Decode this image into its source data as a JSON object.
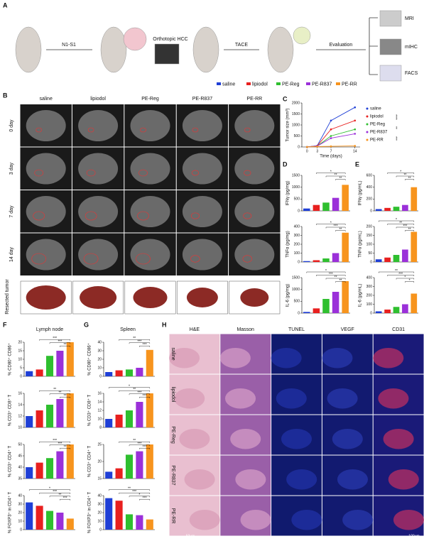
{
  "group_colors": [
    "#1f3fd6",
    "#e8201f",
    "#2fbf2f",
    "#9b30d9",
    "#f7941d"
  ],
  "letters": [
    "A",
    "B",
    "C",
    "D",
    "E",
    "F",
    "G",
    "H"
  ],
  "panel_a": {
    "steps": [
      "N1-S1",
      "Orthotopic HCC",
      "TACE",
      "Evaluation"
    ],
    "methods": [
      "MRI",
      "mIHC",
      "FACS"
    ],
    "legend": [
      "saline",
      "lipiodol",
      "PE-Reg",
      "PE-R837",
      "PE-RR"
    ]
  },
  "panel_b": {
    "columns": [
      "saline",
      "lipiodol",
      "PE-Reg",
      "PE-R837",
      "PE-RR"
    ],
    "rows": [
      "0 day",
      "3 day",
      "7 day",
      "14 day"
    ],
    "tumor_label": "Resected tumor"
  },
  "panel_c": {
    "type": "line",
    "ylabel": "Tumor size (mm³)",
    "xlabel": "Time (days)",
    "x": [
      0,
      3,
      7,
      14
    ],
    "xlim": [
      -1.5,
      15.5
    ],
    "xticks": [
      0,
      3,
      7,
      14
    ],
    "ylim": [
      0,
      2000
    ],
    "yticks": [
      0,
      500,
      1000,
      1500,
      2000
    ],
    "series": [
      {
        "name": "saline",
        "color": "#1f3fd6",
        "values": [
          0,
          60,
          1200,
          1800
        ]
      },
      {
        "name": "lipiodol",
        "color": "#e8201f",
        "values": [
          0,
          50,
          800,
          1200
        ]
      },
      {
        "name": "PE-Reg",
        "color": "#2fbf2f",
        "values": [
          0,
          40,
          500,
          800
        ]
      },
      {
        "name": "PE-R837",
        "color": "#9b30d9",
        "values": [
          0,
          40,
          400,
          600
        ]
      },
      {
        "name": "PE-RR",
        "color": "#f7941d",
        "values": [
          0,
          20,
          30,
          50
        ]
      }
    ],
    "sig": [
      "****",
      "**",
      "***"
    ]
  },
  "panel_d": [
    {
      "type": "bar",
      "ylabel": "IFNγ (pg/mg)",
      "ylim": [
        0,
        1500
      ],
      "yticks": [
        0,
        500,
        1000,
        1500
      ],
      "values": [
        100,
        250,
        350,
        550,
        1100
      ],
      "sig": [
        "**",
        "**",
        "*"
      ]
    },
    {
      "type": "bar",
      "ylabel": "TNFα (pg/mg)",
      "ylim": [
        0,
        400
      ],
      "yticks": [
        0,
        100,
        200,
        300,
        400
      ],
      "values": [
        10,
        20,
        40,
        100,
        330
      ],
      "sig": [
        "**",
        "***",
        "*"
      ]
    },
    {
      "type": "bar",
      "ylabel": "IL-6 (pg/mg)",
      "ylim": [
        0,
        1500
      ],
      "yticks": [
        0,
        500,
        1000,
        1500
      ],
      "values": [
        50,
        200,
        600,
        900,
        1350
      ],
      "sig": [
        "**",
        "**",
        "***",
        "*"
      ]
    }
  ],
  "panel_e": [
    {
      "type": "bar",
      "ylabel": "IFNγ (pg/mL)",
      "ylim": [
        0,
        600
      ],
      "yticks": [
        0,
        200,
        400,
        600
      ],
      "values": [
        30,
        50,
        70,
        100,
        400
      ],
      "sig": [
        "**",
        "**",
        "*"
      ]
    },
    {
      "type": "bar",
      "ylabel": "TNFα (pg/mL)",
      "ylim": [
        0,
        200
      ],
      "yticks": [
        0,
        50,
        100,
        150,
        200
      ],
      "values": [
        15,
        25,
        40,
        70,
        170
      ],
      "sig": [
        "**",
        "***",
        "**",
        "*"
      ]
    },
    {
      "type": "bar",
      "ylabel": "IL-6 (pg/mL)",
      "ylim": [
        0,
        400
      ],
      "yticks": [
        0,
        100,
        200,
        300,
        400
      ],
      "values": [
        20,
        40,
        70,
        100,
        220
      ],
      "sig": [
        "*",
        "*",
        "***",
        "**"
      ]
    }
  ],
  "panel_f": {
    "title": "Lymph node",
    "charts": [
      {
        "type": "bar",
        "ylabel": "% CD80⁺ CD86⁺",
        "ylim": [
          0,
          20
        ],
        "yticks": [
          0,
          5,
          10,
          15,
          20
        ],
        "values": [
          3,
          4,
          12,
          15,
          20
        ],
        "sig": [
          "**",
          "***",
          "***"
        ]
      },
      {
        "type": "bar",
        "ylabel": "% CD3⁺ CD8⁺ T",
        "ylim": [
          10,
          16
        ],
        "yticks": [
          10,
          12,
          14,
          16
        ],
        "values": [
          12,
          13,
          14,
          15,
          16
        ],
        "sig": [
          "**",
          "**",
          "**"
        ]
      },
      {
        "type": "bar",
        "ylabel": "% CD3⁺ CD4⁺ T",
        "ylim": [
          35,
          50
        ],
        "yticks": [
          35,
          40,
          45,
          50
        ],
        "values": [
          40,
          42,
          44,
          47,
          50
        ],
        "sig": [
          "**",
          "***",
          "***"
        ]
      },
      {
        "type": "bar",
        "ylabel": "% FOXP3⁺ in CD4⁺ T",
        "ylim": [
          0,
          40
        ],
        "yticks": [
          0,
          10,
          20,
          30,
          40
        ],
        "values": [
          32,
          28,
          22,
          20,
          13
        ],
        "sig": [
          "***",
          "**",
          "***",
          "*"
        ]
      }
    ]
  },
  "panel_g": {
    "title": "Spleen",
    "charts": [
      {
        "type": "bar",
        "ylabel": "% CD80⁺ CD86⁺",
        "ylim": [
          0,
          40
        ],
        "yticks": [
          0,
          10,
          20,
          30,
          40
        ],
        "values": [
          5,
          7,
          8,
          10,
          31
        ],
        "sig": [
          "***",
          "***",
          "**"
        ]
      },
      {
        "type": "bar",
        "ylabel": "% CD3⁺ CD8⁺ T",
        "ylim": [
          8,
          16
        ],
        "yticks": [
          8,
          10,
          12,
          14,
          16
        ],
        "values": [
          10,
          11,
          12,
          14,
          16
        ],
        "sig": [
          "***",
          "***",
          "**",
          "*"
        ]
      },
      {
        "type": "bar",
        "ylabel": "% CD3⁺ CD4⁺ T",
        "ylim": [
          15,
          25
        ],
        "yticks": [
          15,
          20,
          25
        ],
        "values": [
          17,
          18,
          22,
          23,
          25
        ],
        "sig": [
          "***",
          "***",
          "**"
        ]
      },
      {
        "type": "bar",
        "ylabel": "% FOXP3⁺ in CD4⁺ T",
        "ylim": [
          0,
          40
        ],
        "yticks": [
          0,
          10,
          20,
          30,
          40
        ],
        "values": [
          37,
          34,
          18,
          17,
          12
        ],
        "sig": [
          "***",
          "*",
          "***",
          "**"
        ]
      }
    ]
  },
  "panel_h": {
    "columns": [
      "H&E",
      "Masson",
      "TUNEL",
      "VEGF",
      "CD31"
    ],
    "rows": [
      "saline",
      "lipiodol",
      "PE-Reg",
      "PE-R837",
      "PE-RR"
    ],
    "scale_bars": [
      "50μm",
      "100μm"
    ]
  }
}
